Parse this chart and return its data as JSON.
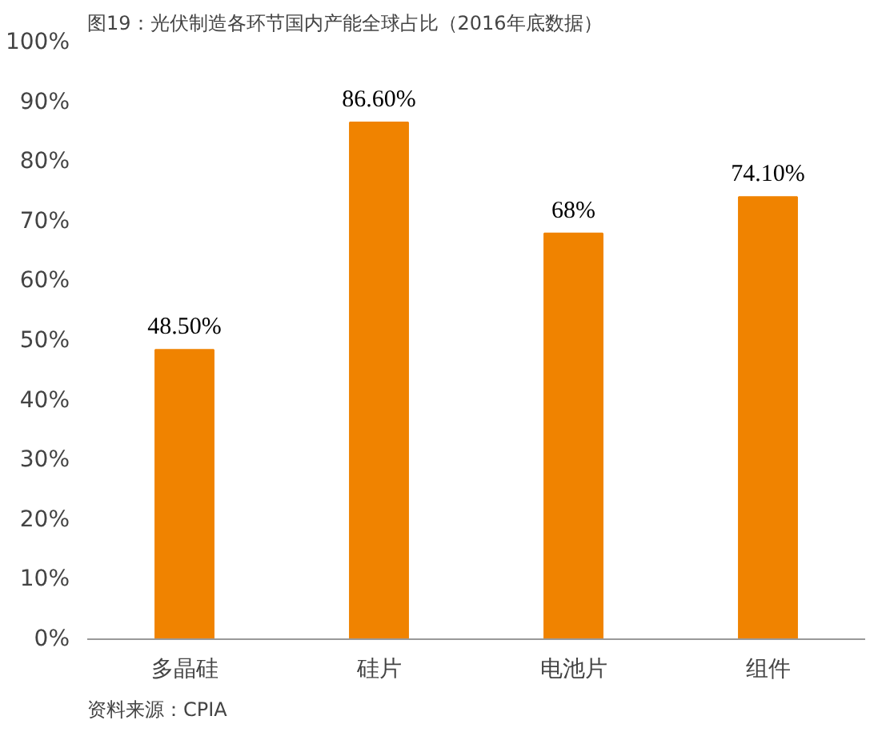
{
  "chart_data": {
    "type": "bar",
    "title": "图19：光伏制造各环节国内产能全球占比（2016年底数据）",
    "categories": [
      "多晶硅",
      "硅片",
      "电池片",
      "组件"
    ],
    "values": [
      48.5,
      86.6,
      68,
      74.1
    ],
    "value_labels": [
      "48.50%",
      "86.60%",
      "68%",
      "74.10%"
    ],
    "color": "#f08300",
    "ylim": [
      0,
      100
    ],
    "yticks": [
      {
        "value": 0,
        "label": "0%"
      },
      {
        "value": 10,
        "label": "10%"
      },
      {
        "value": 20,
        "label": "20%"
      },
      {
        "value": 30,
        "label": "30%"
      },
      {
        "value": 40,
        "label": "40%"
      },
      {
        "value": 50,
        "label": "50%"
      },
      {
        "value": 60,
        "label": "60%"
      },
      {
        "value": 70,
        "label": "70%"
      },
      {
        "value": 80,
        "label": "80%"
      },
      {
        "value": 90,
        "label": "90%"
      },
      {
        "value": 100,
        "label": "100%"
      }
    ],
    "grid": false,
    "annotations": [
      "资料来源：CPIA"
    ]
  }
}
